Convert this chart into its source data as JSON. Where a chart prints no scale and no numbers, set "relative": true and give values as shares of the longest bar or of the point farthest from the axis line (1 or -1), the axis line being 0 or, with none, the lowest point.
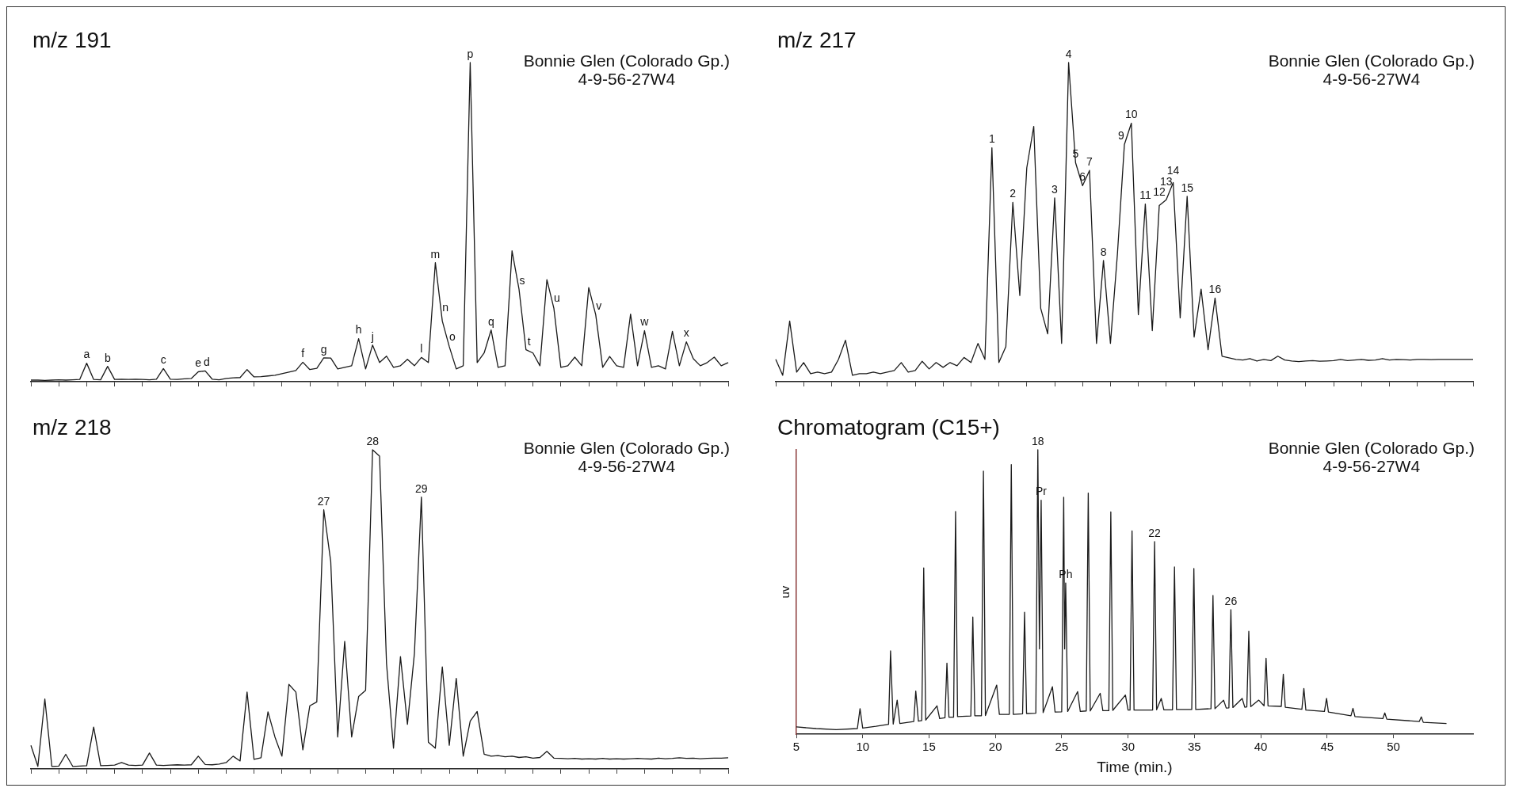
{
  "chart_data": [
    {
      "type": "line",
      "title": "m/z 191",
      "relative": true,
      "tick_labels": false,
      "marker": "none",
      "color": "#1a1a1a",
      "annotations": [
        "Bonnie Glen (Colorado Gp.)",
        "4-9-56-27W4",
        {
          "text": "a",
          "y": 0.058
        },
        {
          "text": "b",
          "y": 0.048
        },
        {
          "text": "c",
          "y": 0.041
        },
        {
          "text": "e",
          "y": 0.031
        },
        {
          "text": "d",
          "y": 0.034
        },
        {
          "text": "f",
          "y": 0.061
        },
        {
          "text": "g",
          "y": 0.075
        },
        {
          "text": "h",
          "y": 0.135
        },
        {
          "text": "j",
          "y": 0.115
        },
        {
          "text": "l",
          "y": 0.076
        },
        {
          "text": "m",
          "y": 0.373
        },
        {
          "text": "n",
          "y": 0.19
        },
        {
          "text": "o",
          "y": 0.11
        },
        {
          "text": "p",
          "y": 1.0
        },
        {
          "text": "q",
          "y": 0.162
        },
        {
          "text": "s",
          "y": 0.29
        },
        {
          "text": "t",
          "y": 0.1
        },
        {
          "text": "u",
          "y": 0.23
        },
        {
          "text": "v",
          "y": 0.21
        },
        {
          "text": "w",
          "y": 0.16
        },
        {
          "text": "x",
          "y": 0.125
        }
      ],
      "categories": [
        null,
        null,
        null,
        null,
        null,
        null,
        null,
        null,
        null,
        null,
        null,
        null,
        null,
        null,
        null,
        null,
        null,
        null,
        null,
        null,
        null,
        null,
        null,
        null,
        null,
        null,
        null,
        null,
        null,
        null,
        null,
        null,
        null,
        null,
        null,
        null,
        null,
        null,
        null,
        null,
        null,
        null,
        null,
        null,
        null,
        null,
        null,
        null,
        null,
        null,
        null,
        null,
        null,
        null,
        null,
        null,
        null,
        null,
        null,
        null,
        null,
        null,
        null,
        null,
        null,
        null,
        null,
        null,
        null,
        null,
        null,
        null,
        null,
        null,
        null,
        null,
        null,
        null,
        null,
        null,
        null,
        null,
        null,
        null,
        null,
        null,
        null,
        null,
        null,
        null,
        null,
        null,
        null,
        null,
        null,
        null,
        null,
        null,
        null,
        null,
        null
      ],
      "values": [
        0.005,
        0.005,
        0.004,
        0.005,
        0.006,
        0.005,
        0.006,
        0.007,
        0.058,
        0.007,
        0.006,
        0.048,
        0.007,
        0.008,
        0.007,
        0.008,
        0.007,
        0.006,
        0.008,
        0.041,
        0.008,
        0.007,
        0.009,
        0.01,
        0.031,
        0.034,
        0.008,
        0.006,
        0.01,
        0.012,
        0.013,
        0.038,
        0.015,
        0.016,
        0.018,
        0.02,
        0.025,
        0.03,
        0.035,
        0.061,
        0.038,
        0.042,
        0.075,
        0.074,
        0.04,
        0.045,
        0.05,
        0.135,
        0.04,
        0.115,
        0.06,
        0.08,
        0.045,
        0.05,
        0.07,
        0.05,
        0.076,
        0.06,
        0.373,
        0.19,
        0.11,
        0.04,
        0.05,
        1.0,
        0.06,
        0.09,
        0.162,
        0.045,
        0.05,
        0.41,
        0.29,
        0.1,
        0.09,
        0.05,
        0.32,
        0.23,
        0.045,
        0.05,
        0.077,
        0.05,
        0.295,
        0.21,
        0.045,
        0.079,
        0.05,
        0.045,
        0.212,
        0.05,
        0.16,
        0.045,
        0.05,
        0.04,
        0.158,
        0.05,
        0.125,
        0.072,
        0.05,
        0.06,
        0.077,
        0.05,
        0.06
      ]
    },
    {
      "type": "line",
      "title": "m/z 217",
      "relative": true,
      "tick_labels": false,
      "marker": "none",
      "color": "#1a1a1a",
      "annotations": [
        "Bonnie Glen (Colorado Gp.)",
        "4-9-56-27W4",
        {
          "text": "1",
          "y": 0.733
        },
        {
          "text": "2",
          "y": 0.562
        },
        {
          "text": "3",
          "y": 0.576
        },
        {
          "text": "4",
          "y": 1.0
        },
        {
          "text": "5",
          "y": 0.686
        },
        {
          "text": "6",
          "y": 0.614
        },
        {
          "text": "7",
          "y": 0.662
        },
        {
          "text": "8",
          "y": 0.38
        },
        {
          "text": "9",
          "y": 0.743
        },
        {
          "text": "10",
          "y": 0.81
        },
        {
          "text": "11",
          "y": 0.557
        },
        {
          "text": "12",
          "y": 0.552
        },
        {
          "text": "13",
          "y": 0.57
        },
        {
          "text": "14",
          "y": 0.624
        },
        {
          "text": "15",
          "y": 0.581
        },
        {
          "text": "16",
          "y": 0.262
        }
      ],
      "categories": [
        null,
        null,
        null,
        null,
        null,
        null,
        null,
        null,
        null,
        null,
        null,
        null,
        null,
        null,
        null,
        null,
        null,
        null,
        null,
        null,
        null,
        null,
        null,
        null,
        null,
        null,
        null,
        null,
        null,
        null,
        null,
        null,
        null,
        null,
        null,
        null,
        null,
        null,
        null,
        null,
        null,
        null,
        null,
        null,
        null,
        null,
        null,
        null,
        null,
        null,
        null,
        null,
        null,
        null,
        null,
        null,
        null,
        null,
        null,
        null,
        null,
        null,
        null,
        null,
        null,
        null,
        null,
        null,
        null,
        null,
        null,
        null,
        null,
        null,
        null,
        null,
        null,
        null,
        null,
        null,
        null,
        null,
        null,
        null,
        null,
        null,
        null,
        null,
        null,
        null,
        null,
        null,
        null,
        null,
        null,
        null,
        null,
        null,
        null,
        null,
        null
      ],
      "values": [
        0.07,
        0.02,
        0.19,
        0.03,
        0.06,
        0.025,
        0.03,
        0.025,
        0.03,
        0.07,
        0.13,
        0.02,
        0.025,
        0.025,
        0.03,
        0.025,
        0.03,
        0.035,
        0.06,
        0.03,
        0.035,
        0.064,
        0.04,
        0.06,
        0.045,
        0.06,
        0.05,
        0.076,
        0.06,
        0.12,
        0.07,
        0.733,
        0.06,
        0.11,
        0.562,
        0.27,
        0.67,
        0.8,
        0.23,
        0.15,
        0.576,
        0.12,
        1.0,
        0.686,
        0.614,
        0.662,
        0.12,
        0.38,
        0.12,
        0.4,
        0.743,
        0.81,
        0.21,
        0.557,
        0.16,
        0.552,
        0.57,
        0.624,
        0.2,
        0.581,
        0.14,
        0.29,
        0.1,
        0.262,
        0.08,
        0.075,
        0.07,
        0.068,
        0.072,
        0.065,
        0.07,
        0.066,
        0.08,
        0.068,
        0.065,
        0.063,
        0.065,
        0.066,
        0.064,
        0.065,
        0.066,
        0.07,
        0.066,
        0.068,
        0.07,
        0.067,
        0.068,
        0.072,
        0.068,
        0.07,
        0.069,
        0.068,
        0.07,
        0.07,
        0.069,
        0.07,
        0.07,
        0.07,
        0.07,
        0.07,
        0.07
      ]
    },
    {
      "type": "line",
      "title": "m/z 218",
      "relative": true,
      "tick_labels": false,
      "marker": "none",
      "color": "#1a1a1a",
      "annotations": [
        "Bonnie Glen (Colorado Gp.)",
        "4-9-56-27W4",
        {
          "text": "27",
          "y": 0.812
        },
        {
          "text": "28",
          "y": 1.0
        },
        {
          "text": "29",
          "y": 0.852
        }
      ],
      "categories": [
        null,
        null,
        null,
        null,
        null,
        null,
        null,
        null,
        null,
        null,
        null,
        null,
        null,
        null,
        null,
        null,
        null,
        null,
        null,
        null,
        null,
        null,
        null,
        null,
        null,
        null,
        null,
        null,
        null,
        null,
        null,
        null,
        null,
        null,
        null,
        null,
        null,
        null,
        null,
        null,
        null,
        null,
        null,
        null,
        null,
        null,
        null,
        null,
        null,
        null,
        null,
        null,
        null,
        null,
        null,
        null,
        null,
        null,
        null,
        null,
        null,
        null,
        null,
        null,
        null,
        null,
        null,
        null,
        null,
        null,
        null,
        null,
        null,
        null,
        null,
        null,
        null,
        null,
        null,
        null,
        null,
        null,
        null,
        null,
        null,
        null,
        null,
        null,
        null,
        null,
        null,
        null,
        null,
        null,
        null,
        null,
        null,
        null,
        null,
        null,
        null
      ],
      "values": [
        0.074,
        0.008,
        0.219,
        0.008,
        0.009,
        0.046,
        0.008,
        0.009,
        0.01,
        0.131,
        0.01,
        0.011,
        0.012,
        0.02,
        0.012,
        0.011,
        0.012,
        0.05,
        0.012,
        0.011,
        0.012,
        0.013,
        0.012,
        0.013,
        0.04,
        0.014,
        0.013,
        0.015,
        0.02,
        0.04,
        0.025,
        0.241,
        0.03,
        0.035,
        0.179,
        0.1,
        0.04,
        0.265,
        0.241,
        0.06,
        0.198,
        0.21,
        0.812,
        0.65,
        0.1,
        0.4,
        0.1,
        0.227,
        0.246,
        1.0,
        0.98,
        0.33,
        0.065,
        0.352,
        0.14,
        0.362,
        0.852,
        0.084,
        0.065,
        0.32,
        0.074,
        0.284,
        0.04,
        0.15,
        0.18,
        0.046,
        0.04,
        0.042,
        0.038,
        0.04,
        0.036,
        0.038,
        0.034,
        0.036,
        0.055,
        0.034,
        0.033,
        0.032,
        0.033,
        0.031,
        0.032,
        0.031,
        0.033,
        0.031,
        0.032,
        0.031,
        0.032,
        0.033,
        0.032,
        0.031,
        0.034,
        0.032,
        0.033,
        0.035,
        0.033,
        0.034,
        0.032,
        0.033,
        0.034,
        0.034,
        0.035
      ]
    },
    {
      "type": "line",
      "title": "Chromatogram (C15+)",
      "xlabel": "Time (min.)",
      "ylabel": "uv",
      "relative": true,
      "tick_labels": "x",
      "marker": "none",
      "color": "#1a1a1a",
      "annotations": [
        "Bonnie Glen (Colorado Gp.)",
        "4-9-56-27W4",
        {
          "text": "18",
          "x": 23.2,
          "y": 1.0
        },
        {
          "text": "Pr",
          "x": 23.45,
          "y": 0.823
        },
        {
          "text": "Ph",
          "x": 25.3,
          "y": 0.532
        },
        {
          "text": "22",
          "x": 32.0,
          "y": 0.677
        },
        {
          "text": "26",
          "x": 37.75,
          "y": 0.438
        }
      ],
      "xlim": [
        5,
        56
      ],
      "xticks": [
        5,
        10,
        15,
        20,
        25,
        30,
        35,
        40,
        45,
        50
      ],
      "x": [
        5,
        6.5,
        8,
        9.6,
        9.8,
        10,
        11,
        11.95,
        12.1,
        12.3,
        12.6,
        12.8,
        13.85,
        14.0,
        14.2,
        14.45,
        14.6,
        14.75,
        15.6,
        15.8,
        16.2,
        16.35,
        16.5,
        16.85,
        17.0,
        17.15,
        18.15,
        18.3,
        18.45,
        18.95,
        19.1,
        19.25,
        20.1,
        20.3,
        21.05,
        21.2,
        21.35,
        22.05,
        22.2,
        22.35,
        23.05,
        23.2,
        23.32,
        23.45,
        23.6,
        24.3,
        24.5,
        25.0,
        25.15,
        25.22,
        25.3,
        25.45,
        26.2,
        26.4,
        26.85,
        27.0,
        27.15,
        27.9,
        28.1,
        28.55,
        28.7,
        28.85,
        29.8,
        30.0,
        30.15,
        30.3,
        30.45,
        31.85,
        32.0,
        32.15,
        32.5,
        32.7,
        33.35,
        33.5,
        33.65,
        34.8,
        34.96,
        35.1,
        36.25,
        36.4,
        36.55,
        37.2,
        37.4,
        37.6,
        37.75,
        37.9,
        38.6,
        38.8,
        38.95,
        39.1,
        39.25,
        39.85,
        40.25,
        40.4,
        40.55,
        41.55,
        41.7,
        41.85,
        43.1,
        43.25,
        43.4,
        44.8,
        44.96,
        45.1,
        46.8,
        46.95,
        47.1,
        49.2,
        49.35,
        49.5,
        51.95,
        52.1,
        52.25,
        54
      ],
      "values": [
        0.026,
        0.02,
        0.016,
        0.02,
        0.09,
        0.022,
        0.028,
        0.035,
        0.293,
        0.036,
        0.12,
        0.038,
        0.045,
        0.152,
        0.046,
        0.048,
        0.585,
        0.05,
        0.1,
        0.055,
        0.058,
        0.25,
        0.06,
        0.06,
        0.783,
        0.062,
        0.064,
        0.412,
        0.065,
        0.065,
        0.925,
        0.066,
        0.173,
        0.07,
        0.07,
        0.948,
        0.07,
        0.072,
        0.429,
        0.073,
        0.074,
        1.0,
        0.3,
        0.823,
        0.076,
        0.167,
        0.078,
        0.079,
        0.833,
        0.3,
        0.532,
        0.08,
        0.15,
        0.08,
        0.082,
        0.848,
        0.082,
        0.144,
        0.083,
        0.083,
        0.782,
        0.084,
        0.138,
        0.085,
        0.085,
        0.715,
        0.085,
        0.085,
        0.677,
        0.086,
        0.126,
        0.086,
        0.086,
        0.588,
        0.087,
        0.087,
        0.583,
        0.087,
        0.09,
        0.488,
        0.09,
        0.12,
        0.092,
        0.093,
        0.438,
        0.094,
        0.126,
        0.095,
        0.096,
        0.362,
        0.097,
        0.12,
        0.1,
        0.267,
        0.1,
        0.098,
        0.211,
        0.095,
        0.088,
        0.161,
        0.085,
        0.08,
        0.126,
        0.078,
        0.065,
        0.091,
        0.062,
        0.055,
        0.075,
        0.053,
        0.045,
        0.061,
        0.042,
        0.038
      ]
    }
  ]
}
